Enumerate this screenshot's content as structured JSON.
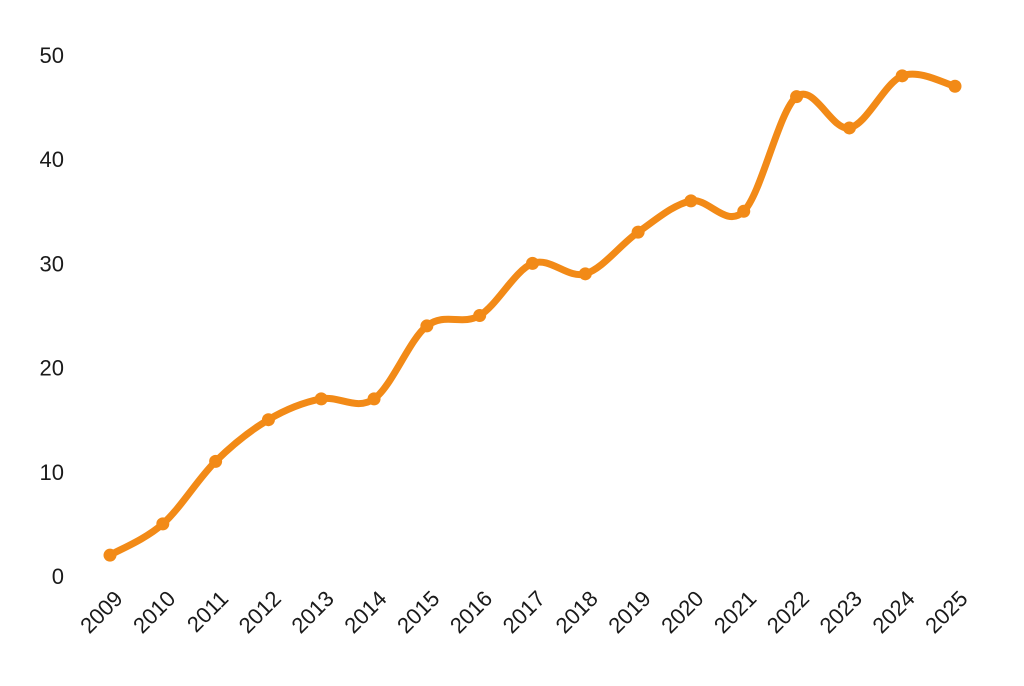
{
  "chart_data": {
    "type": "line",
    "x": [
      "2009",
      "2010",
      "2011",
      "2012",
      "2013",
      "2014",
      "2015",
      "2016",
      "2017",
      "2018",
      "2019",
      "2020",
      "2021",
      "2022",
      "2023",
      "2024",
      "2025"
    ],
    "series": [
      {
        "values": [
          2,
          5,
          11,
          15,
          17,
          17,
          24,
          25,
          30,
          29,
          33,
          36,
          35,
          46,
          43,
          48,
          47
        ]
      }
    ],
    "ylim": [
      0,
      50
    ],
    "yticks": [
      0,
      10,
      20,
      30,
      40,
      50
    ],
    "grid": false,
    "smooth": true,
    "line_color": "#f28a17"
  }
}
